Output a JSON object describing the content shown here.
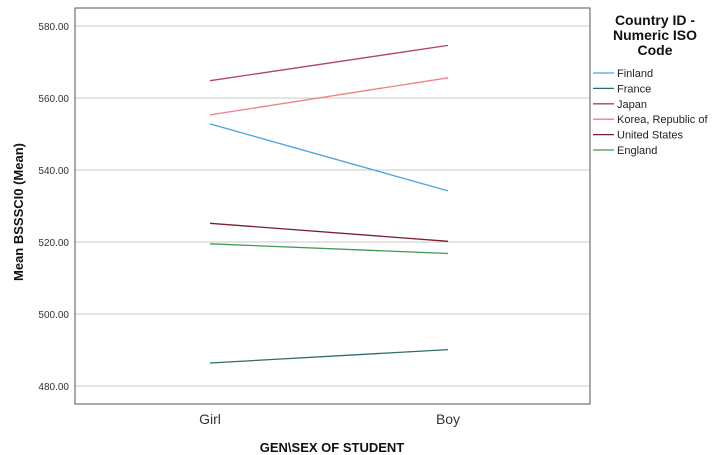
{
  "chart_data": {
    "type": "line",
    "title": "",
    "xlabel": "GEN\\SEX OF STUDENT",
    "ylabel": "Mean BSSSCI0 (Mean)",
    "categories": [
      "Girl",
      "Boy"
    ],
    "ylim": [
      475,
      585
    ],
    "yticks": [
      480,
      500,
      520,
      540,
      560,
      580
    ],
    "ytick_labels": [
      "480.00",
      "500.00",
      "520.00",
      "540.00",
      "560.00",
      "580.00"
    ],
    "grid": true,
    "legend_position": "right",
    "legend_title": [
      "Country ID -",
      "Numeric ISO",
      "Code"
    ],
    "series": [
      {
        "name": "Finland",
        "values": [
          552.8,
          534.2
        ],
        "color": "#4aa3df"
      },
      {
        "name": "France",
        "values": [
          486.4,
          490.1
        ],
        "color": "#2e6b6b"
      },
      {
        "name": "Japan",
        "values": [
          564.8,
          574.6
        ],
        "color": "#b0415e"
      },
      {
        "name": "Korea, Republic of",
        "values": [
          555.3,
          565.6
        ],
        "color": "#ef7f86"
      },
      {
        "name": "United States",
        "values": [
          525.2,
          520.2
        ],
        "color": "#7a1f2b"
      },
      {
        "name": "England",
        "values": [
          519.5,
          516.8
        ],
        "color": "#3e9a57"
      }
    ]
  }
}
